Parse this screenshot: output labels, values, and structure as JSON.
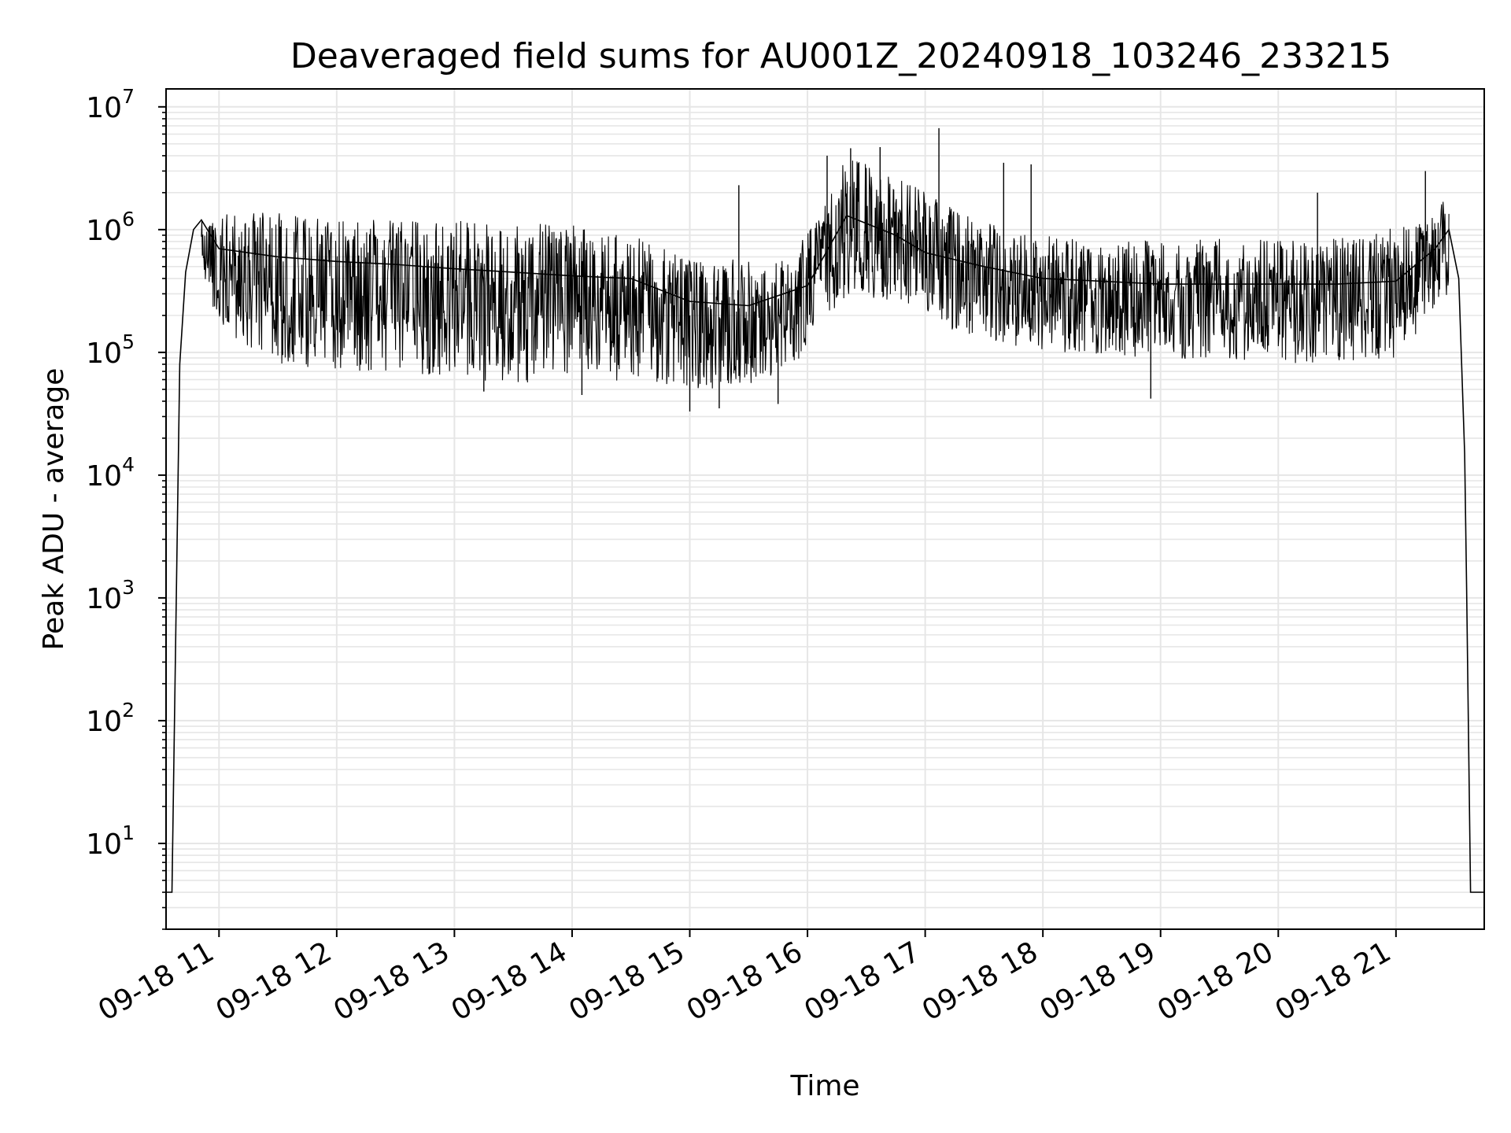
{
  "chart_data": {
    "type": "line",
    "title": "Deaveraged field sums for AU001Z_20240918_103246_233215",
    "xlabel": "Time",
    "ylabel": "Peak ADU - average",
    "yscale": "log",
    "ylim": [
      2.0,
      14000000
    ],
    "xlim": [
      "2024-09-18 10:33",
      "2024-09-18 21:45"
    ],
    "x_ticks": [
      "09-18 11",
      "09-18 12",
      "09-18 13",
      "09-18 14",
      "09-18 15",
      "09-18 16",
      "09-18 17",
      "09-18 18",
      "09-18 19",
      "09-18 20",
      "09-18 21"
    ],
    "y_ticks": [
      {
        "base": "10",
        "exp": "1",
        "value": 10
      },
      {
        "base": "10",
        "exp": "2",
        "value": 100
      },
      {
        "base": "10",
        "exp": "3",
        "value": 1000
      },
      {
        "base": "10",
        "exp": "4",
        "value": 10000
      },
      {
        "base": "10",
        "exp": "5",
        "value": 100000
      },
      {
        "base": "10",
        "exp": "6",
        "value": 1000000
      },
      {
        "base": "10",
        "exp": "7",
        "value": 10000000
      }
    ],
    "grid": true,
    "line_color": "#000000",
    "grid_color": "#e6e6e6",
    "series": [
      {
        "values": [
          [
            "2024-09-18 10:33",
            4
          ],
          [
            "2024-09-18 10:36",
            4
          ],
          [
            "2024-09-18 10:38",
            600
          ],
          [
            "2024-09-18 10:40",
            80000
          ],
          [
            "2024-09-18 10:43",
            450000
          ],
          [
            "2024-09-18 10:47",
            1000000
          ],
          [
            "2024-09-18 10:51",
            1200000
          ],
          [
            "2024-09-18 11:00",
            700000
          ],
          [
            "2024-09-18 11:30",
            600000
          ],
          [
            "2024-09-18 12:00",
            550000
          ],
          [
            "2024-09-18 12:30",
            520000
          ],
          [
            "2024-09-18 13:00",
            480000
          ],
          [
            "2024-09-18 13:30",
            450000
          ],
          [
            "2024-09-18 14:00",
            420000
          ],
          [
            "2024-09-18 14:30",
            400000
          ],
          [
            "2024-09-18 15:00",
            260000
          ],
          [
            "2024-09-18 15:30",
            240000
          ],
          [
            "2024-09-18 16:00",
            350000
          ],
          [
            "2024-09-18 16:20",
            1300000
          ],
          [
            "2024-09-18 16:45",
            900000
          ],
          [
            "2024-09-18 17:00",
            650000
          ],
          [
            "2024-09-18 17:30",
            500000
          ],
          [
            "2024-09-18 18:00",
            400000
          ],
          [
            "2024-09-18 18:30",
            380000
          ],
          [
            "2024-09-18 19:00",
            360000
          ],
          [
            "2024-09-18 19:30",
            360000
          ],
          [
            "2024-09-18 20:00",
            360000
          ],
          [
            "2024-09-18 20:30",
            360000
          ],
          [
            "2024-09-18 21:00",
            380000
          ],
          [
            "2024-09-18 21:20",
            700000
          ],
          [
            "2024-09-18 21:27",
            1000000
          ],
          [
            "2024-09-18 21:32",
            400000
          ],
          [
            "2024-09-18 21:35",
            15000
          ],
          [
            "2024-09-18 21:36",
            1200
          ],
          [
            "2024-09-18 21:38",
            4
          ],
          [
            "2024-09-18 21:45",
            4
          ]
        ]
      }
    ],
    "envelope": {
      "upper": [
        [
          "2024-09-18 10:51",
          1300000
        ],
        [
          "2024-09-18 11:30",
          1400000
        ],
        [
          "2024-09-18 12:00",
          1200000
        ],
        [
          "2024-09-18 13:00",
          1200000
        ],
        [
          "2024-09-18 14:00",
          1100000
        ],
        [
          "2024-09-18 14:30",
          900000
        ],
        [
          "2024-09-18 15:00",
          600000
        ],
        [
          "2024-09-18 15:40",
          550000
        ],
        [
          "2024-09-18 16:05",
          1200000
        ],
        [
          "2024-09-18 16:20",
          4000000
        ],
        [
          "2024-09-18 16:50",
          2500000
        ],
        [
          "2024-09-18 17:15",
          1500000
        ],
        [
          "2024-09-18 17:40",
          1000000
        ],
        [
          "2024-09-18 18:30",
          800000
        ],
        [
          "2024-09-18 19:30",
          850000
        ],
        [
          "2024-09-18 20:30",
          850000
        ],
        [
          "2024-09-18 21:15",
          1200000
        ],
        [
          "2024-09-18 21:27",
          2000000
        ]
      ],
      "lower": [
        [
          "2024-09-18 10:51",
          500000
        ],
        [
          "2024-09-18 11:00",
          150000
        ],
        [
          "2024-09-18 11:30",
          80000
        ],
        [
          "2024-09-18 12:00",
          70000
        ],
        [
          "2024-09-18 12:30",
          70000
        ],
        [
          "2024-09-18 13:00",
          60000
        ],
        [
          "2024-09-18 14:00",
          55000
        ],
        [
          "2024-09-18 14:30",
          60000
        ],
        [
          "2024-09-18 15:00",
          50000
        ],
        [
          "2024-09-18 15:30",
          45000
        ],
        [
          "2024-09-18 16:00",
          100000
        ],
        [
          "2024-09-18 16:20",
          300000
        ],
        [
          "2024-09-18 16:50",
          250000
        ],
        [
          "2024-09-18 17:15",
          150000
        ],
        [
          "2024-09-18 18:00",
          100000
        ],
        [
          "2024-09-18 19:00",
          90000
        ],
        [
          "2024-09-18 20:00",
          80000
        ],
        [
          "2024-09-18 21:00",
          90000
        ],
        [
          "2024-09-18 21:27",
          300000
        ]
      ]
    },
    "spikes": [
      [
        "2024-09-18 15:25",
        2300000
      ],
      [
        "2024-09-18 16:10",
        4000000
      ],
      [
        "2024-09-18 16:22",
        4600000
      ],
      [
        "2024-09-18 16:37",
        4700000
      ],
      [
        "2024-09-18 17:07",
        6700000
      ],
      [
        "2024-09-18 17:40",
        3500000
      ],
      [
        "2024-09-18 17:54",
        3400000
      ],
      [
        "2024-09-18 20:20",
        2000000
      ],
      [
        "2024-09-18 21:15",
        3000000
      ]
    ],
    "dips": [
      [
        "2024-09-18 15:00",
        33000
      ],
      [
        "2024-09-18 15:15",
        35000
      ],
      [
        "2024-09-18 15:45",
        38000
      ],
      [
        "2024-09-18 18:55",
        42000
      ],
      [
        "2024-09-18 13:15",
        48000
      ],
      [
        "2024-09-18 14:05",
        45000
      ]
    ]
  }
}
